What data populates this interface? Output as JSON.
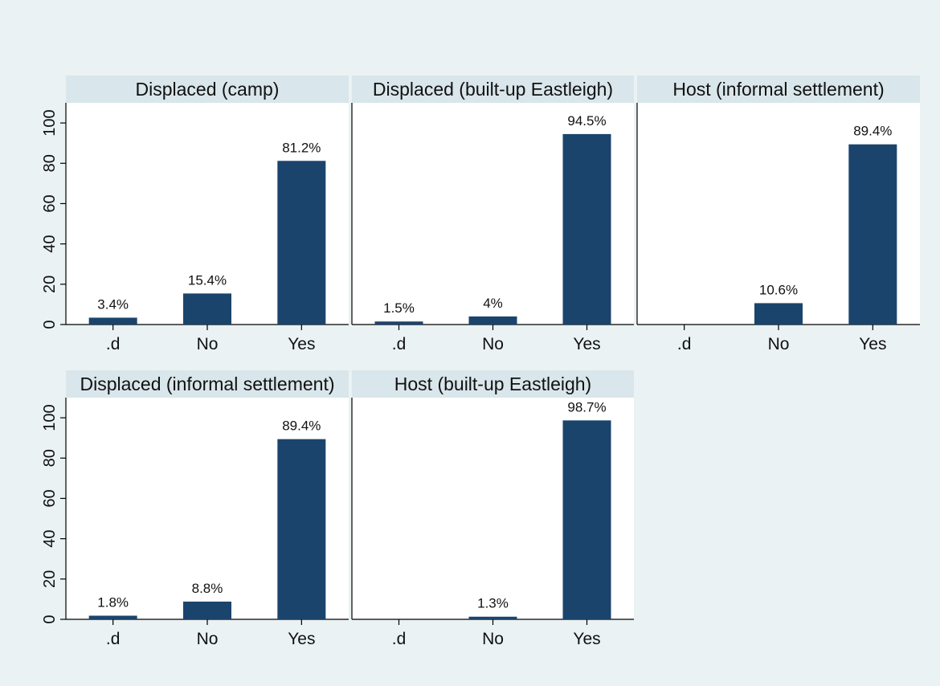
{
  "chart_data": {
    "type": "bar",
    "layout": "facet-grid",
    "categories": [
      ".d",
      "No",
      "Yes"
    ],
    "ylim": [
      0,
      110
    ],
    "yticks": [
      0,
      20,
      40,
      60,
      80,
      100
    ],
    "bar_color": "#1a446c",
    "panel_header_color": "#d9e6eb",
    "panels": [
      {
        "title": "Displaced (camp)",
        "values": [
          3.4,
          15.4,
          81.2
        ],
        "labels": [
          "3.4%",
          "15.4%",
          "81.2%"
        ]
      },
      {
        "title": "Displaced (built-up Eastleigh)",
        "values": [
          1.5,
          4,
          94.5
        ],
        "labels": [
          "1.5%",
          "4%",
          "94.5%"
        ]
      },
      {
        "title": "Host (informal settlement)",
        "values": [
          null,
          10.6,
          89.4
        ],
        "labels": [
          "",
          "10.6%",
          "89.4%"
        ]
      },
      {
        "title": "Displaced (informal settlement)",
        "values": [
          1.8,
          8.8,
          89.4
        ],
        "labels": [
          "1.8%",
          "8.8%",
          "89.4%"
        ]
      },
      {
        "title": "Host (built-up Eastleigh)",
        "values": [
          null,
          1.3,
          98.7
        ],
        "labels": [
          "",
          "1.3%",
          "98.7%"
        ]
      }
    ]
  }
}
